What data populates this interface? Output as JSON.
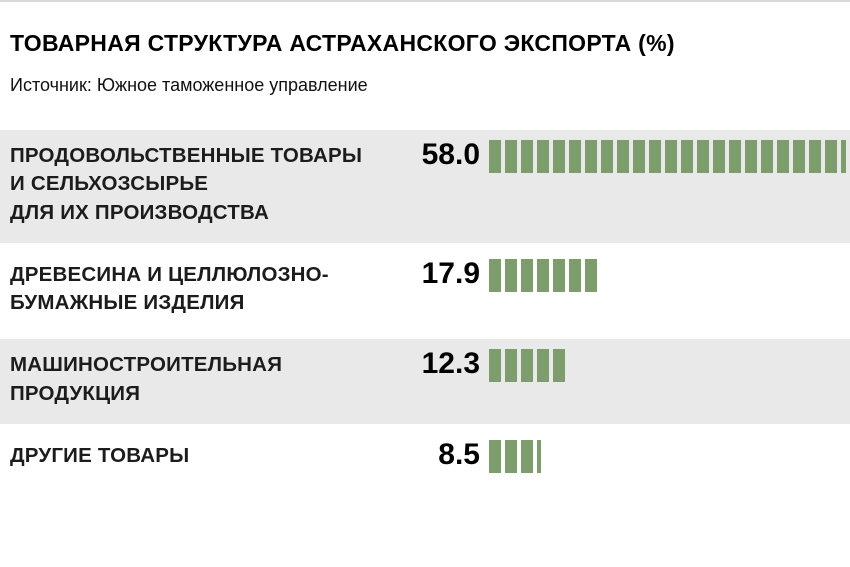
{
  "header": {
    "title": "ТОВАРНАЯ СТРУКТУРА АСТРАХАНСКОГО ЭКСПОРТА (%)",
    "source": "Источник: Южное таможенное управление"
  },
  "colors": {
    "bar_green": "#7e9d6c",
    "row_shade": "#e9e9e9",
    "text": "#000000"
  },
  "chart_data": {
    "type": "bar",
    "orientation": "horizontal",
    "title": "ТОВАРНАЯ СТРУКТУРА АСТРАХАНСКОГО ЭКСПОРТА (%)",
    "source": "Источник: Южное таможенное управление",
    "xlabel": "",
    "ylabel": "",
    "xlim": [
      0,
      60
    ],
    "grid": false,
    "legend": false,
    "bar_style": "segmented-stripes",
    "categories": [
      "ПРОДОВОЛЬСТВЕННЫЕ ТОВАРЫ И СЕЛЬХОЗСЫРЬЕ ДЛЯ ИХ ПРОИЗВОДСТВА",
      "ДРЕВЕСИНА И ЦЕЛЛЮЛОЗНО-БУМАЖНЫЕ ИЗДЕЛИЯ",
      "МАШИНОСТРОИТЕЛЬНАЯ ПРОДУКЦИЯ",
      "ДРУГИЕ ТОВАРЫ"
    ],
    "values": [
      58.0,
      17.9,
      12.3,
      8.5
    ],
    "rows": [
      {
        "label_lines": [
          "ПРОДОВОЛЬСТВЕННЫЕ ТОВАРЫ",
          "И СЕЛЬХОЗСЫРЬЕ",
          "ДЛЯ ИХ ПРОИЗВОДСТВА"
        ],
        "value": 58.0,
        "value_label": "58.0"
      },
      {
        "label_lines": [
          "ДРЕВЕСИНА И ЦЕЛЛЮЛОЗНО-",
          "БУМАЖНЫЕ ИЗДЕЛИЯ"
        ],
        "value": 17.9,
        "value_label": "17.9"
      },
      {
        "label_lines": [
          "МАШИНОСТРОИТЕЛЬНАЯ",
          "ПРОДУКЦИЯ"
        ],
        "value": 12.3,
        "value_label": "12.3"
      },
      {
        "label_lines": [
          "ДРУГИЕ ТОВАРЫ"
        ],
        "value": 8.5,
        "value_label": "8.5"
      }
    ]
  }
}
